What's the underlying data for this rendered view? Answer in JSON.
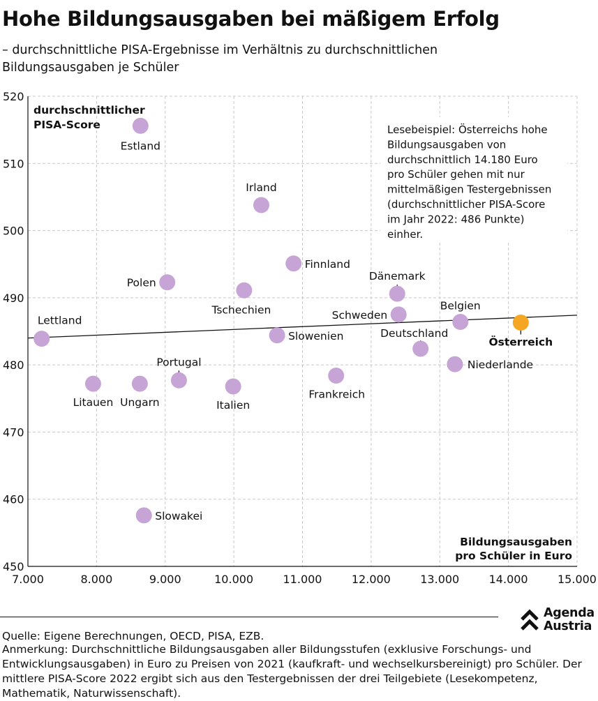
{
  "header": {
    "title": "Hohe Bildungsausgaben bei mäßigem Erfolg",
    "subtitle": "– durchschnittliche PISA-Ergebnisse im Verhältnis zu durchschnittlichen Bildungsausgaben je Schüler"
  },
  "chart_data": {
    "type": "scatter",
    "xlabel": [
      "Bildungsausgaben",
      "pro Schüler in Euro"
    ],
    "ylabel": [
      "durchschnittlicher",
      "PISA-Score"
    ],
    "xlim": [
      7000,
      15000
    ],
    "ylim": [
      450,
      520
    ],
    "x_ticks": [
      7000,
      8000,
      9000,
      10000,
      11000,
      12000,
      13000,
      14000,
      15000
    ],
    "x_tick_labels": [
      "7.000",
      "8.000",
      "9.000",
      "10.000",
      "11.000",
      "12.000",
      "13.000",
      "14.000",
      "15.000"
    ],
    "y_ticks": [
      450,
      460,
      470,
      480,
      490,
      500,
      510,
      520
    ],
    "y_tick_labels": [
      "450",
      "460",
      "470",
      "480",
      "490",
      "500",
      "510",
      "520"
    ],
    "grid": true,
    "grid_style": "dashed",
    "trendline": {
      "x": [
        7000,
        15000
      ],
      "y": [
        484.0,
        487.4
      ]
    },
    "colors": {
      "point": "#c7a4d6",
      "highlight": "#f5a623",
      "line": "#111111",
      "grid": "#c8c8c8"
    },
    "points": [
      {
        "label": "Estland",
        "x": 8640,
        "y": 515.6
      },
      {
        "label": "Irland",
        "x": 10400,
        "y": 503.8
      },
      {
        "label": "Finnland",
        "x": 10870,
        "y": 495.1
      },
      {
        "label": "Polen",
        "x": 9030,
        "y": 492.3
      },
      {
        "label": "Tschechien",
        "x": 10150,
        "y": 491.1
      },
      {
        "label": "Dänemark",
        "x": 12380,
        "y": 490.6
      },
      {
        "label": "Schweden",
        "x": 12400,
        "y": 487.5
      },
      {
        "label": "Belgien",
        "x": 13300,
        "y": 486.4
      },
      {
        "label": "Österreich",
        "x": 14180,
        "y": 486.3,
        "highlight": true
      },
      {
        "label": "Lettland",
        "x": 7200,
        "y": 483.9
      },
      {
        "label": "Slowenien",
        "x": 10630,
        "y": 484.4
      },
      {
        "label": "Deutschland",
        "x": 12720,
        "y": 482.4
      },
      {
        "label": "Niederlande",
        "x": 13220,
        "y": 480.1
      },
      {
        "label": "Portugal",
        "x": 9200,
        "y": 477.7
      },
      {
        "label": "Frankreich",
        "x": 11490,
        "y": 478.4
      },
      {
        "label": "Litauen",
        "x": 7950,
        "y": 477.2
      },
      {
        "label": "Ungarn",
        "x": 8630,
        "y": 477.2
      },
      {
        "label": "Italien",
        "x": 9990,
        "y": 476.8
      },
      {
        "label": "Slowakei",
        "x": 8690,
        "y": 457.6
      }
    ],
    "annotation": [
      "Lesebeispiel: Österreichs hohe",
      "Bildungsausgaben von",
      "durchschnittlich 14.180 Euro",
      "pro Schüler gehen mit nur",
      "mittelmäßigen Testergebnissen",
      "(durchschnittlicher PISA-Score",
      "im Jahr 2022: 486 Punkte)",
      "einher."
    ]
  },
  "footer": {
    "source": "Quelle: Eigene Berechnungen, OECD, PISA, EZB.",
    "note": "Anmerkung: Durchschnittliche Bildungsausgaben aller Bildungsstufen (exklusive Forschungs- und Entwicklungsausgaben) in Euro zu Preisen von 2021 (kaufkraft- und wechselkursbereinigt) pro Schüler. Der mittlere PISA-Score 2022 ergibt sich aus den Testergebnissen der drei Teilgebiete (Lesekompetenz, Mathematik, Naturwissenschaft).",
    "logo_line1": "Agenda",
    "logo_line2": "Austria",
    "logo_icon": "double-chevron-up-icon"
  }
}
